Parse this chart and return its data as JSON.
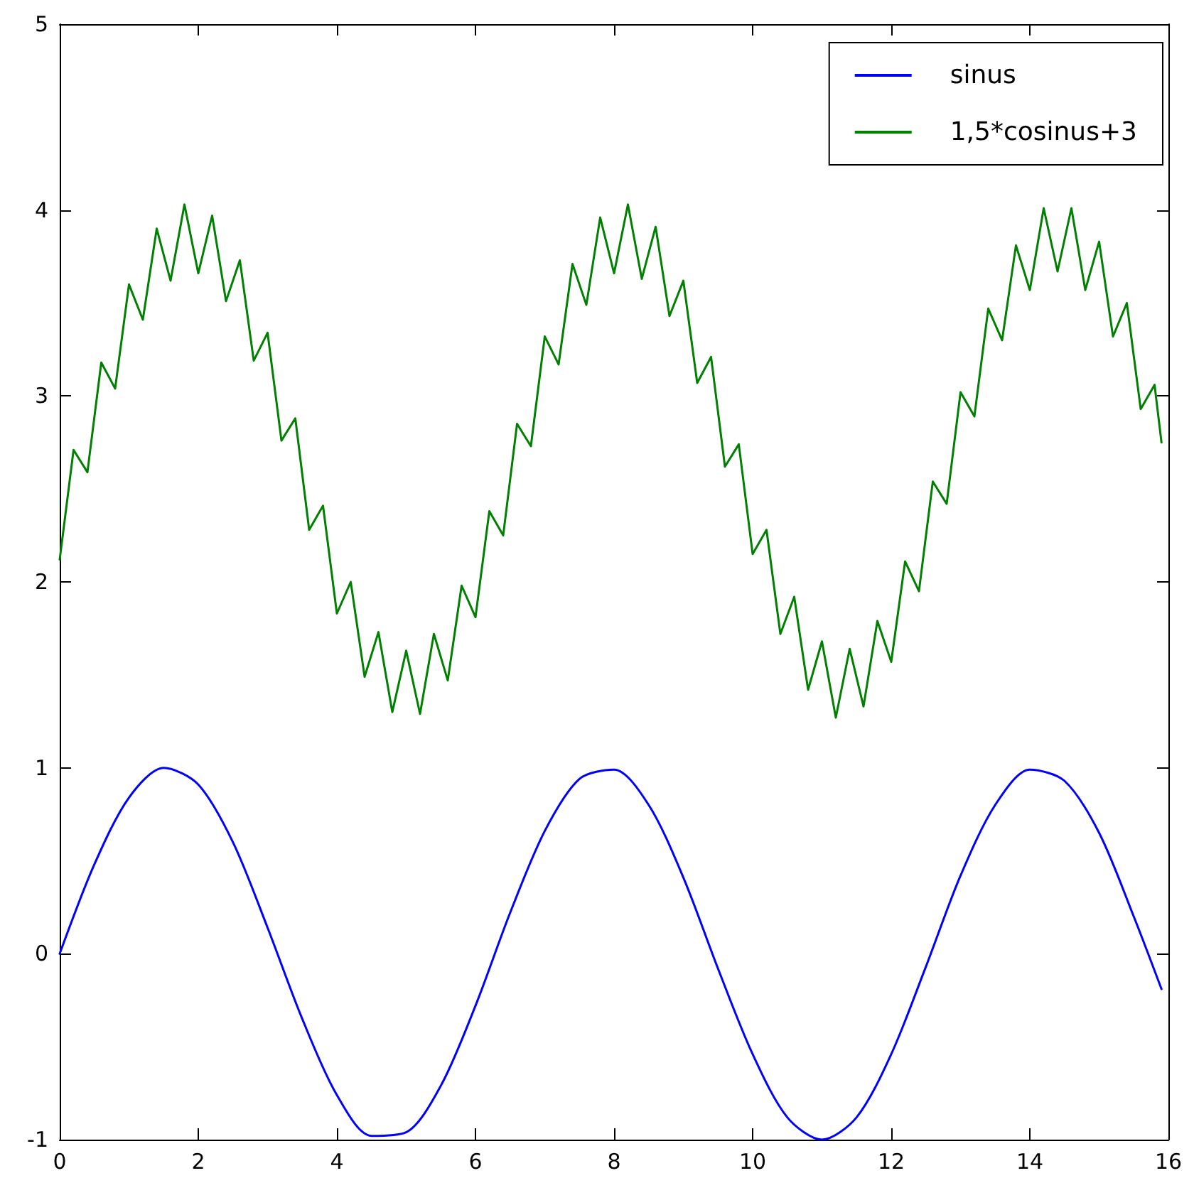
{
  "chart_data": {
    "type": "line",
    "xlim": [
      0,
      16
    ],
    "ylim": [
      -1,
      5
    ],
    "xticks": [
      0,
      2,
      4,
      6,
      8,
      10,
      12,
      14,
      16
    ],
    "yticks": [
      -1,
      0,
      1,
      2,
      3,
      4,
      5
    ],
    "grid": false,
    "legend": "top right",
    "line_style": "solid",
    "marker": "none",
    "series": [
      {
        "name": "sinus",
        "color": "#0000ff",
        "x": [
          0,
          0.5,
          1,
          1.5,
          2,
          2.5,
          3,
          3.5,
          4,
          4.5,
          5,
          5.5,
          6,
          6.5,
          7,
          7.5,
          8,
          8.5,
          9,
          9.5,
          10,
          10.5,
          11,
          11.5,
          12,
          12.5,
          13,
          13.5,
          14,
          14.5,
          15,
          15.5,
          15.9
        ],
        "values": [
          0,
          0.48,
          0.84,
          1.0,
          0.91,
          0.6,
          0.14,
          -0.35,
          -0.76,
          -0.98,
          -0.96,
          -0.71,
          -0.28,
          0.22,
          0.66,
          0.94,
          0.99,
          0.8,
          0.41,
          -0.08,
          -0.54,
          -0.88,
          -1.0,
          -0.88,
          -0.54,
          -0.07,
          0.42,
          0.8,
          0.99,
          0.93,
          0.65,
          0.2,
          -0.19
        ]
      },
      {
        "name": "1,5*cosinus+3",
        "color": "#008000",
        "x": [
          0,
          0.2,
          0.4,
          0.6,
          0.8,
          1,
          1.2,
          1.4,
          1.6,
          1.8,
          2,
          2.2,
          2.4,
          2.6,
          2.8,
          3,
          3.2,
          3.4,
          3.6,
          3.8,
          4,
          4.2,
          4.4,
          4.6,
          4.8,
          5,
          5.2,
          5.4,
          5.6,
          5.8,
          6,
          6.2,
          6.4,
          6.6,
          6.8,
          7,
          7.2,
          7.4,
          7.6,
          7.8,
          8,
          8.2,
          8.4,
          8.6,
          8.8,
          9,
          9.2,
          9.4,
          9.6,
          9.8,
          10,
          10.2,
          10.4,
          10.6,
          10.8,
          11,
          11.2,
          11.4,
          11.6,
          11.8,
          12,
          12.2,
          12.4,
          12.6,
          12.8,
          13,
          13.2,
          13.4,
          13.6,
          13.8,
          14,
          14.2,
          14.4,
          14.6,
          14.8,
          15,
          15.2,
          15.4,
          15.6,
          15.8,
          15.9
        ],
        "values": [
          2.12,
          2.71,
          2.59,
          3.18,
          3.04,
          3.6,
          3.41,
          3.9,
          3.62,
          4.03,
          3.66,
          3.97,
          3.51,
          3.73,
          3.19,
          3.34,
          2.76,
          2.88,
          2.28,
          2.41,
          1.83,
          2.0,
          1.49,
          1.73,
          1.3,
          1.63,
          1.29,
          1.72,
          1.47,
          1.98,
          1.81,
          2.38,
          2.25,
          2.85,
          2.73,
          3.32,
          3.17,
          3.71,
          3.49,
          3.96,
          3.66,
          4.03,
          3.63,
          3.91,
          3.43,
          3.62,
          3.07,
          3.21,
          2.62,
          2.74,
          2.15,
          2.28,
          1.72,
          1.92,
          1.42,
          1.68,
          1.27,
          1.64,
          1.33,
          1.79,
          1.57,
          2.11,
          1.95,
          2.54,
          2.42,
          3.02,
          2.89,
          3.47,
          3.3,
          3.81,
          3.57,
          4.01,
          3.67,
          4.01,
          3.57,
          3.83,
          3.32,
          3.5,
          2.93,
          3.06,
          2.75
        ]
      }
    ]
  }
}
